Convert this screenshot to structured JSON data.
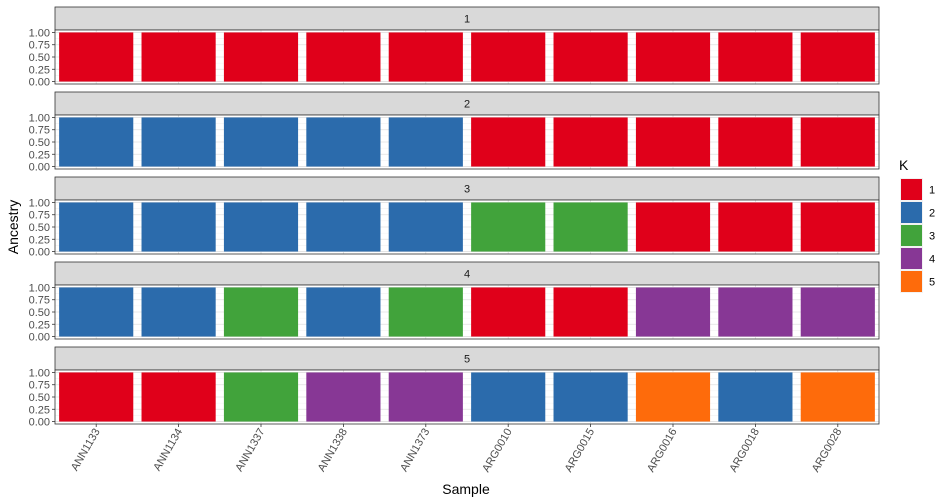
{
  "chart_data": {
    "type": "bar",
    "stacked": true,
    "xlabel": "Sample",
    "ylabel": "Ancestry",
    "ylim": [
      0,
      1
    ],
    "yticks": [
      "0.00",
      "0.25",
      "0.50",
      "0.75",
      "1.00"
    ],
    "categories": [
      "ANN1133",
      "ANN1134",
      "ANN1337",
      "ANN1338",
      "ANN1373",
      "ARG0010",
      "ARG0015",
      "ARG0016",
      "ARG0018",
      "ARG0028"
    ],
    "legend": {
      "title": "K",
      "position": "right",
      "entries": [
        {
          "label": "1",
          "color": "#E0001A"
        },
        {
          "label": "2",
          "color": "#2B6BAC"
        },
        {
          "label": "3",
          "color": "#41A33B"
        },
        {
          "label": "4",
          "color": "#873795"
        },
        {
          "label": "5",
          "color": "#FE6B0B"
        }
      ]
    },
    "panels": [
      {
        "label": "1",
        "assignments": [
          "1",
          "1",
          "1",
          "1",
          "1",
          "1",
          "1",
          "1",
          "1",
          "1"
        ],
        "values": [
          1,
          1,
          1,
          1,
          1,
          1,
          1,
          1,
          1,
          1
        ]
      },
      {
        "label": "2",
        "assignments": [
          "2",
          "2",
          "2",
          "2",
          "2",
          "1",
          "1",
          "1",
          "1",
          "1"
        ],
        "values": [
          1,
          1,
          1,
          1,
          1,
          1,
          1,
          1,
          1,
          1
        ]
      },
      {
        "label": "3",
        "assignments": [
          "2",
          "2",
          "2",
          "2",
          "2",
          "3",
          "3",
          "1",
          "1",
          "1"
        ],
        "values": [
          1,
          1,
          1,
          1,
          1,
          1,
          1,
          1,
          1,
          1
        ]
      },
      {
        "label": "4",
        "assignments": [
          "2",
          "2",
          "3",
          "2",
          "3",
          "1",
          "1",
          "4",
          "4",
          "4"
        ],
        "values": [
          1,
          1,
          1,
          1,
          1,
          1,
          1,
          1,
          1,
          1
        ]
      },
      {
        "label": "5",
        "assignments": [
          "1",
          "1",
          "3",
          "4",
          "4",
          "2",
          "2",
          "5",
          "2",
          "5"
        ],
        "values": [
          1,
          1,
          1,
          1,
          1,
          1,
          1,
          1,
          1,
          1
        ]
      }
    ],
    "grid": true
  }
}
